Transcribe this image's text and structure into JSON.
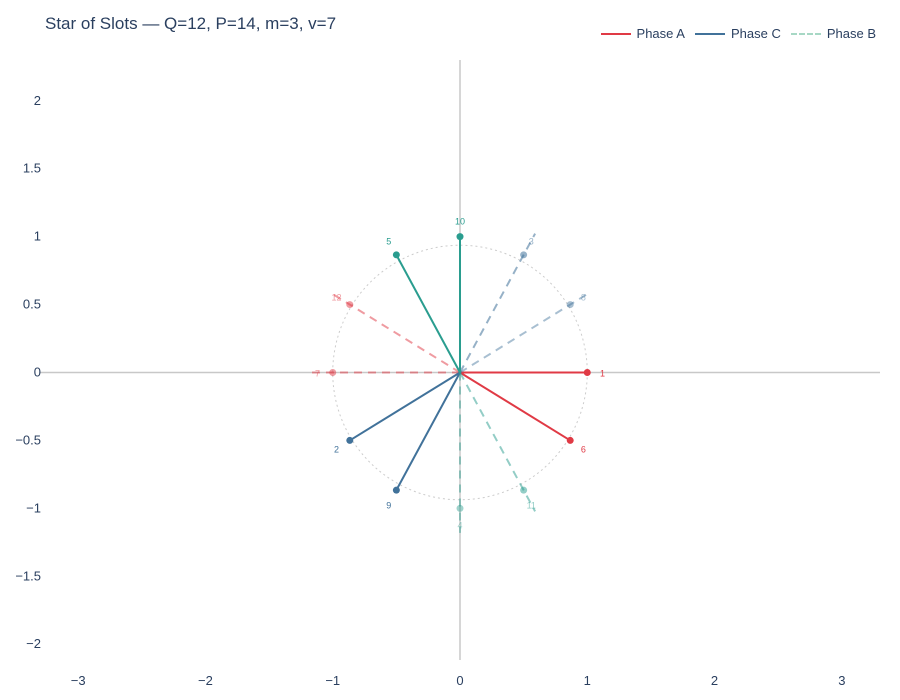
{
  "chart_data": {
    "type": "scatter",
    "title": "Star of Slots — Q=12, P=14, m=3, v=7",
    "xlim": [
      -3.3,
      3.3
    ],
    "ylim": [
      -2.3,
      2.3
    ],
    "x_ticks": [
      -3,
      -2,
      -1,
      0,
      1,
      2,
      3
    ],
    "y_ticks": [
      2,
      1.5,
      1,
      0.5,
      0,
      -0.5,
      -1,
      -1.5,
      -2
    ],
    "x_tick_labels": [
      "−3",
      "−2",
      "−1",
      "0",
      "1",
      "2",
      "3"
    ],
    "y_tick_labels": [
      "2",
      "1.5",
      "1",
      "0.5",
      "0",
      "−0.5",
      "−1",
      "−1.5",
      "−2"
    ],
    "grid": false,
    "legend_position": "top-right",
    "legend": [
      {
        "name": "Phase A",
        "color": "#e03a45",
        "dash": "solid"
      },
      {
        "name": "Phase C",
        "color": "#41729a",
        "dash": "solid"
      },
      {
        "name": "Phase B",
        "color": "#a7d8c5",
        "dash": "dashed"
      }
    ],
    "unit_circle": {
      "radius": 1,
      "color": "#cccccc",
      "dash": "dotted"
    },
    "spokes": [
      {
        "slot": "1",
        "x": 1.0,
        "y": 0.0,
        "color": "#e03a45",
        "dash": "solid",
        "opacity": 1.0
      },
      {
        "slot": "6",
        "x": 0.866,
        "y": -0.5,
        "color": "#e03a45",
        "dash": "solid",
        "opacity": 1.0
      },
      {
        "slot": "7",
        "x": -1.0,
        "y": 0.0,
        "color": "#e03a45",
        "dash": "dashed",
        "opacity": 0.5
      },
      {
        "slot": "12",
        "x": -0.866,
        "y": 0.5,
        "color": "#e03a45",
        "dash": "dashed",
        "opacity": 0.5
      },
      {
        "slot": "2",
        "x": -0.866,
        "y": -0.5,
        "color": "#41729a",
        "dash": "solid",
        "opacity": 1.0
      },
      {
        "slot": "9",
        "x": -0.5,
        "y": -0.866,
        "color": "#41729a",
        "dash": "solid",
        "opacity": 1.0
      },
      {
        "slot": "3",
        "x": 0.5,
        "y": 0.866,
        "color": "#41729a",
        "dash": "dashed",
        "opacity": 0.55
      },
      {
        "slot": "8",
        "x": 0.866,
        "y": 0.5,
        "color": "#41729a",
        "dash": "dashed",
        "opacity": 0.45
      },
      {
        "slot": "5",
        "x": -0.5,
        "y": 0.866,
        "color": "#2a9d8f",
        "dash": "solid",
        "opacity": 1.0
      },
      {
        "slot": "10",
        "x": 0.0,
        "y": 1.0,
        "color": "#2a9d8f",
        "dash": "solid",
        "opacity": 1.0
      },
      {
        "slot": "11",
        "x": 0.5,
        "y": -0.866,
        "color": "#2a9d8f",
        "dash": "dashed",
        "opacity": 0.5
      },
      {
        "slot": "4",
        "x": 0.0,
        "y": -1.0,
        "color": "#2a9d8f",
        "dash": "dashed",
        "opacity": 0.45
      }
    ]
  }
}
